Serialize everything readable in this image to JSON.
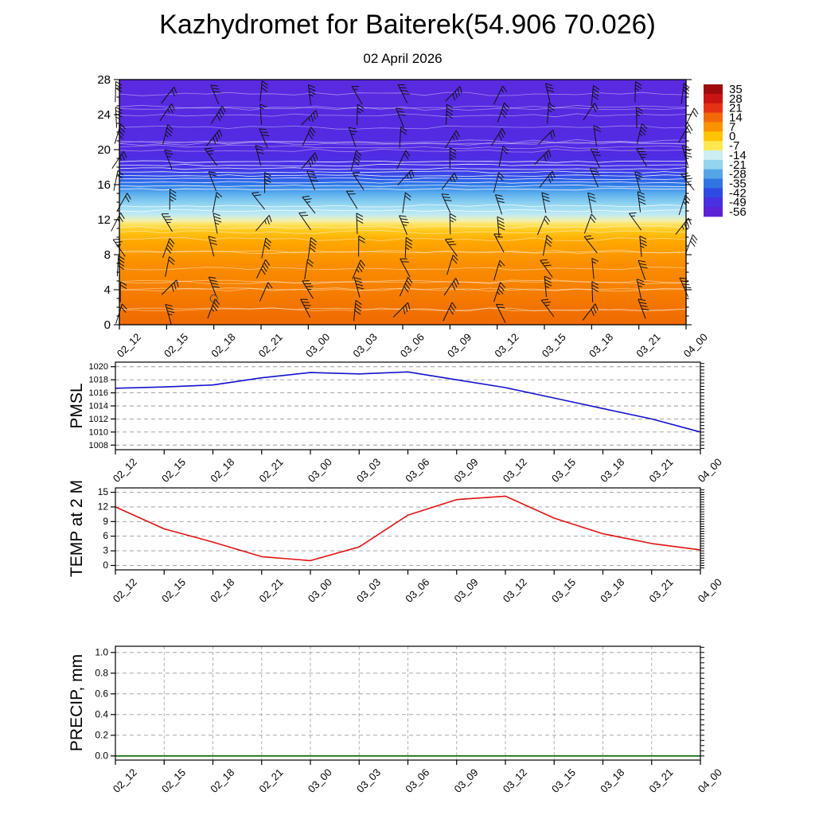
{
  "title": "Kazhydromet for Baiterek(54.906 70.026)",
  "subtitle": "02 April 2026",
  "time_labels": [
    "02_12",
    "02_15",
    "02_18",
    "02_21",
    "03_00",
    "03_03",
    "03_06",
    "03_09",
    "03_12",
    "03_15",
    "03_18",
    "03_21",
    "04_00"
  ],
  "colors": {
    "frame": "#000000",
    "grid": "#999999",
    "pmsl_line": "#1212cc",
    "temp_line": "#e01212",
    "precip_line": "#006400",
    "barb": "#101010",
    "contour": "#ffffff"
  },
  "cross_section": {
    "altitude_range": [
      0,
      28
    ],
    "altitude_ticks": [
      0,
      4,
      8,
      12,
      16,
      20,
      24,
      28
    ],
    "colorbar_ticks": [
      "35",
      "28",
      "21",
      "14",
      "7",
      "0",
      "-7",
      "-14",
      "-21",
      "-28",
      "-35",
      "-42",
      "-49",
      "-56"
    ],
    "colorbar_colors": [
      "#9e0b0b",
      "#c81414",
      "#e63214",
      "#f2690a",
      "#fb9200",
      "#ffc400",
      "#ffe84d",
      "#cdeef2",
      "#93d4ee",
      "#55a4e6",
      "#2f74e2",
      "#2f4ae2",
      "#4930e2",
      "#5a23d6"
    ],
    "gradient_stops": [
      {
        "pct": 0,
        "color": "#5b2ae0"
      },
      {
        "pct": 30,
        "color": "#512be2"
      },
      {
        "pct": 36,
        "color": "#4733e6"
      },
      {
        "pct": 40,
        "color": "#2f55e8"
      },
      {
        "pct": 43,
        "color": "#2f7ce8"
      },
      {
        "pct": 47,
        "color": "#62b4ee"
      },
      {
        "pct": 51,
        "color": "#93d6f2"
      },
      {
        "pct": 55,
        "color": "#bfeaf4"
      },
      {
        "pct": 57.5,
        "color": "#f2f0b0"
      },
      {
        "pct": 59,
        "color": "#ffe360"
      },
      {
        "pct": 62,
        "color": "#ffc515"
      },
      {
        "pct": 66,
        "color": "#ffa800"
      },
      {
        "pct": 75,
        "color": "#fb8f00"
      },
      {
        "pct": 100,
        "color": "#ef6a00"
      }
    ],
    "wind_barb_grid": {
      "columns": 13,
      "row_altitudes": [
        1.5,
        4,
        6.5,
        9,
        11.5,
        14,
        16.5,
        19,
        21.5,
        24,
        26.5
      ]
    },
    "marker": {
      "time_index": 2,
      "altitude": 3
    }
  },
  "chart_data": [
    {
      "type": "heatmap",
      "name": "temperature-height cross section",
      "title": "02 April 2026",
      "x_categories_ref": "time_labels",
      "y_range": [
        0,
        28
      ],
      "legend_position": "right-colorbar",
      "colorbar_ticks": [
        35,
        28,
        21,
        14,
        7,
        0,
        -7,
        -14,
        -21,
        -28,
        -35,
        -42,
        -49,
        -56
      ],
      "overlay": "wind barbs and white contour lines"
    },
    {
      "type": "line",
      "name": "PMSL",
      "color": "#1212cc",
      "values": [
        1016.7,
        1016.9,
        1017.2,
        1018.3,
        1019.1,
        1018.9,
        1019.2,
        1018.0,
        1016.8,
        1015.2,
        1013.6,
        1012.0,
        1010.0
      ],
      "ylim": [
        1007.3,
        1020.7
      ],
      "ytick_values": [
        1008,
        1010,
        1012,
        1014,
        1016,
        1018,
        1020
      ],
      "ytick_labels": [
        "1008",
        "1010",
        "1012",
        "1014",
        "1016",
        "1018",
        "1020"
      ],
      "minor_step": 0.5,
      "grid": "horizontal-dashed"
    },
    {
      "type": "line",
      "name": "TEMP at 2 M",
      "color": "#e01212",
      "values": [
        12.0,
        7.5,
        4.8,
        1.8,
        1.0,
        3.8,
        10.3,
        13.5,
        14.2,
        9.7,
        6.5,
        4.5,
        3.2
      ],
      "ylim": [
        -0.9,
        15.9
      ],
      "ytick_values": [
        0,
        3,
        6,
        9,
        12,
        15
      ],
      "ytick_labels": [
        "0",
        "3",
        "6",
        "9",
        "12",
        "15"
      ],
      "minor_step": 0.5,
      "grid": "horizontal-dashed"
    },
    {
      "type": "line",
      "name": "PRECIP, mm",
      "color": "#006400",
      "values": [
        0,
        0,
        0,
        0,
        0,
        0,
        0,
        0,
        0,
        0,
        0,
        0,
        0
      ],
      "ylim": [
        -0.04,
        1.06
      ],
      "ytick_values": [
        0,
        0.2,
        0.4,
        0.6,
        0.8,
        1.0
      ],
      "ytick_labels": [
        "0.0",
        "0.2",
        "0.4",
        "0.6",
        "0.8",
        "1.0"
      ],
      "minor_step": 0.05,
      "grid": "horizontal-and-vertical-dashed"
    }
  ]
}
